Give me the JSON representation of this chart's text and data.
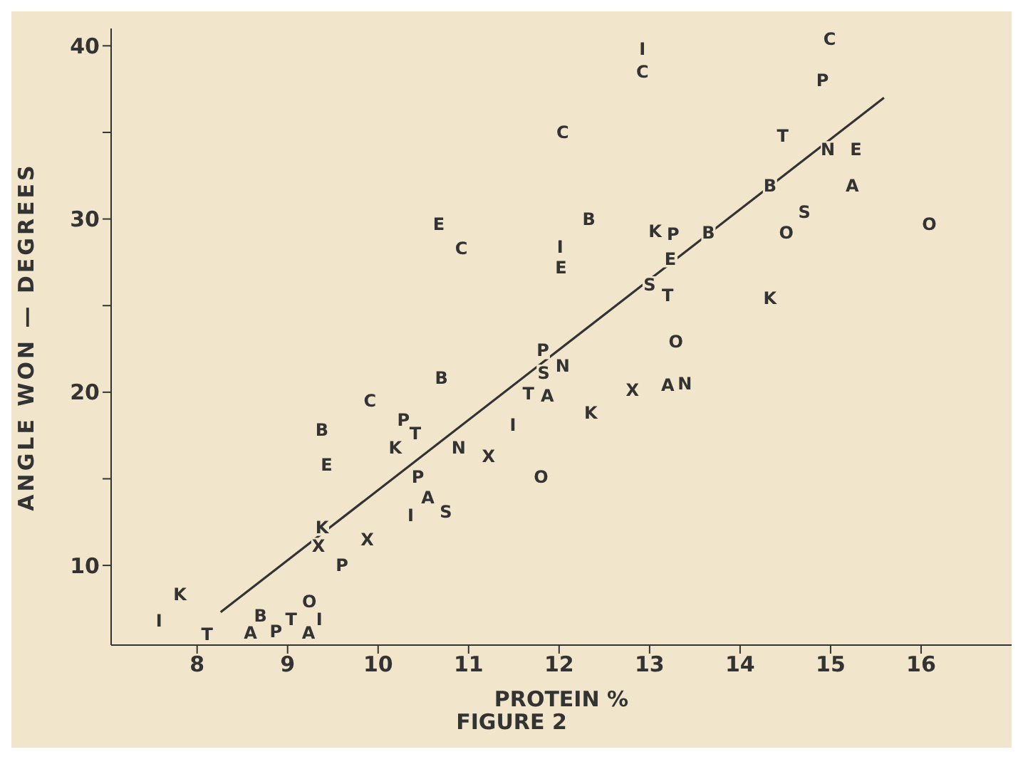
{
  "chart_data": {
    "type": "line",
    "xlabel": "PROTEIN %",
    "ylabel": "ANGLE WON — DEGREES",
    "xlim": [
      7.05,
      17
    ],
    "ylim": [
      5.4,
      41
    ],
    "xticks": [
      8,
      9,
      10,
      11,
      12,
      13,
      14,
      15,
      16
    ],
    "yticks": [
      10,
      {
        "value": 15,
        "label": null
      },
      20,
      {
        "value": 25,
        "label": null
      },
      30,
      {
        "value": 35,
        "label": null
      },
      40
    ],
    "series": [
      {
        "color": "#333333",
        "x": [
          8.26,
          15.59
        ],
        "values": [
          7.3,
          37.0
        ]
      }
    ],
    "annotations": [
      "FIGURE 2",
      {
        "text": "A",
        "x": 8.59,
        "y": 6.1
      },
      {
        "text": "A",
        "x": 9.23,
        "y": 6.1
      },
      {
        "text": "A",
        "x": 10.55,
        "y": 13.9
      },
      {
        "text": "A",
        "x": 11.87,
        "y": 19.8
      },
      {
        "text": "A",
        "x": 13.2,
        "y": 20.4
      },
      {
        "text": "A",
        "x": 15.24,
        "y": 31.9
      },
      {
        "text": "B",
        "x": 8.7,
        "y": 7.1
      },
      {
        "text": "B",
        "x": 9.38,
        "y": 17.8
      },
      {
        "text": "B",
        "x": 10.7,
        "y": 20.8
      },
      {
        "text": "B",
        "x": 12.33,
        "y": 30.0
      },
      {
        "text": "B",
        "x": 13.65,
        "y": 29.2
      },
      {
        "text": "B",
        "x": 14.33,
        "y": 31.9
      },
      {
        "text": "C",
        "x": 9.91,
        "y": 19.5
      },
      {
        "text": "C",
        "x": 10.92,
        "y": 28.3
      },
      {
        "text": "C",
        "x": 12.04,
        "y": 35.0
      },
      {
        "text": "C",
        "x": 12.92,
        "y": 38.5
      },
      {
        "text": "C",
        "x": 14.99,
        "y": 40.4
      },
      {
        "text": "E",
        "x": 9.43,
        "y": 15.8
      },
      {
        "text": "E",
        "x": 10.67,
        "y": 29.7
      },
      {
        "text": "E",
        "x": 12.02,
        "y": 27.2
      },
      {
        "text": "E",
        "x": 13.23,
        "y": 27.7
      },
      {
        "text": "E",
        "x": 15.28,
        "y": 34.0
      },
      {
        "text": "I",
        "x": 7.58,
        "y": 6.8
      },
      {
        "text": "I",
        "x": 9.35,
        "y": 6.9
      },
      {
        "text": "I",
        "x": 10.36,
        "y": 12.9
      },
      {
        "text": "I",
        "x": 11.49,
        "y": 18.1
      },
      {
        "text": "I",
        "x": 12.01,
        "y": 28.4
      },
      {
        "text": "I",
        "x": 12.92,
        "y": 39.8
      },
      {
        "text": "K",
        "x": 7.81,
        "y": 8.3
      },
      {
        "text": "K",
        "x": 9.38,
        "y": 12.2
      },
      {
        "text": "K",
        "x": 10.19,
        "y": 16.8
      },
      {
        "text": "K",
        "x": 12.35,
        "y": 18.8
      },
      {
        "text": "K",
        "x": 13.06,
        "y": 29.3
      },
      {
        "text": "K",
        "x": 14.33,
        "y": 25.4
      },
      {
        "text": "N",
        "x": 10.89,
        "y": 16.8
      },
      {
        "text": "N",
        "x": 12.04,
        "y": 21.5
      },
      {
        "text": "N",
        "x": 13.39,
        "y": 20.5
      },
      {
        "text": "N",
        "x": 14.97,
        "y": 34.0
      },
      {
        "text": "O",
        "x": 9.24,
        "y": 7.9
      },
      {
        "text": "O",
        "x": 11.8,
        "y": 15.1
      },
      {
        "text": "O",
        "x": 13.29,
        "y": 22.9
      },
      {
        "text": "O",
        "x": 14.51,
        "y": 29.2
      },
      {
        "text": "O",
        "x": 16.09,
        "y": 29.7
      },
      {
        "text": "P",
        "x": 8.87,
        "y": 6.2
      },
      {
        "text": "P",
        "x": 9.6,
        "y": 10.0
      },
      {
        "text": "P",
        "x": 10.28,
        "y": 18.4
      },
      {
        "text": "P",
        "x": 10.44,
        "y": 15.1
      },
      {
        "text": "P",
        "x": 11.82,
        "y": 22.4
      },
      {
        "text": "P",
        "x": 13.26,
        "y": 29.1
      },
      {
        "text": "P",
        "x": 14.91,
        "y": 38.0
      },
      {
        "text": "S",
        "x": 10.75,
        "y": 13.1
      },
      {
        "text": "S",
        "x": 11.83,
        "y": 21.1
      },
      {
        "text": "S",
        "x": 13.0,
        "y": 26.2
      },
      {
        "text": "S",
        "x": 14.71,
        "y": 30.4
      },
      {
        "text": "T",
        "x": 8.11,
        "y": 6.0
      },
      {
        "text": "T",
        "x": 9.04,
        "y": 6.9
      },
      {
        "text": "T",
        "x": 10.41,
        "y": 17.6
      },
      {
        "text": "T",
        "x": 11.66,
        "y": 19.9
      },
      {
        "text": "T",
        "x": 13.2,
        "y": 25.6
      },
      {
        "text": "T",
        "x": 14.47,
        "y": 34.8
      },
      {
        "text": "X",
        "x": 9.34,
        "y": 11.1
      },
      {
        "text": "X",
        "x": 9.88,
        "y": 11.5
      },
      {
        "text": "X",
        "x": 11.22,
        "y": 16.3
      },
      {
        "text": "X",
        "x": 12.81,
        "y": 20.1
      }
    ]
  }
}
